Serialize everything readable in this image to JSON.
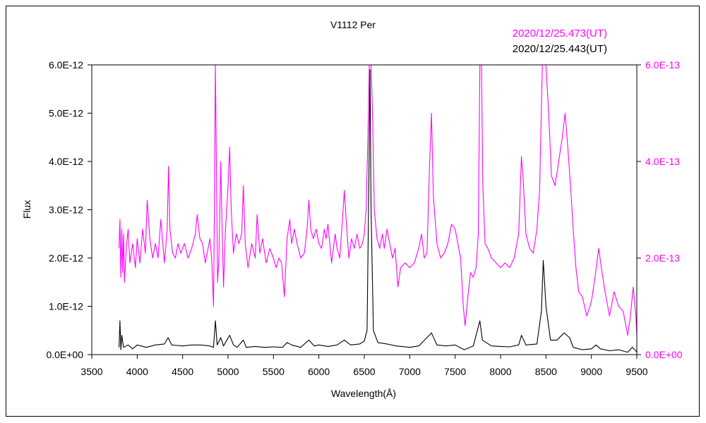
{
  "chart_data": {
    "type": "line",
    "title": "V1112 Per",
    "xlabel": "Wavelength(Å)",
    "ylabel": "Flux",
    "xlim": [
      3500,
      9500
    ],
    "ylim_left": [
      0,
      6e-12
    ],
    "ylim_right": [
      0,
      6e-13
    ],
    "x_ticks": [
      "3500",
      "4000",
      "4500",
      "5000",
      "5500",
      "6000",
      "6500",
      "7000",
      "7500",
      "8000",
      "8500",
      "9000",
      "9500"
    ],
    "y_ticks_left": [
      "0.0E+00",
      "1.0E-12",
      "2.0E-12",
      "3.0E-12",
      "4.0E-12",
      "5.0E-12",
      "6.0E-12"
    ],
    "y_ticks_right": [
      "0.0E+00",
      "2.0E-13",
      "4.0E-13",
      "6.0E-13"
    ],
    "grid": false,
    "legend_position": "top-right",
    "colors": {
      "magenta": "#ff00ff",
      "black": "#000000",
      "frame": "#000000"
    },
    "series": [
      {
        "name": "2020/12/25.473(UT)",
        "axis": "right",
        "color": "#ff00ff",
        "points": [
          [
            3800,
            2.2e-13
          ],
          [
            3810,
            2.8e-13
          ],
          [
            3820,
            1.6e-13
          ],
          [
            3830,
            2.6e-13
          ],
          [
            3840,
            1.7e-13
          ],
          [
            3850,
            2.5e-13
          ],
          [
            3860,
            1.5e-13
          ],
          [
            3880,
            2.2e-13
          ],
          [
            3900,
            2.6e-13
          ],
          [
            3920,
            1.9e-13
          ],
          [
            3950,
            2.3e-13
          ],
          [
            3980,
            1.8e-13
          ],
          [
            4000,
            2.4e-13
          ],
          [
            4030,
            1.9e-13
          ],
          [
            4060,
            2.6e-13
          ],
          [
            4090,
            2.1e-13
          ],
          [
            4110,
            3.2e-13
          ],
          [
            4140,
            2.4e-13
          ],
          [
            4170,
            2e-13
          ],
          [
            4200,
            2.3e-13
          ],
          [
            4230,
            2e-13
          ],
          [
            4260,
            2.8e-13
          ],
          [
            4300,
            1.9e-13
          ],
          [
            4330,
            2.6e-13
          ],
          [
            4345,
            3.9e-13
          ],
          [
            4360,
            2.6e-13
          ],
          [
            4390,
            2.1e-13
          ],
          [
            4420,
            2e-13
          ],
          [
            4450,
            2.3e-13
          ],
          [
            4480,
            2.1e-13
          ],
          [
            4520,
            2.3e-13
          ],
          [
            4560,
            2e-13
          ],
          [
            4600,
            2.2e-13
          ],
          [
            4640,
            2.5e-13
          ],
          [
            4660,
            2.9e-13
          ],
          [
            4690,
            2.4e-13
          ],
          [
            4720,
            2.3e-13
          ],
          [
            4750,
            1.9e-13
          ],
          [
            4780,
            2.2e-13
          ],
          [
            4800,
            2.4e-13
          ],
          [
            4820,
            2e-13
          ],
          [
            4840,
            1e-13
          ],
          [
            4850,
            3e-13
          ],
          [
            4861,
            6e-13
          ],
          [
            4872,
            4e-13
          ],
          [
            4885,
            1.5e-13
          ],
          [
            4900,
            2e-13
          ],
          [
            4920,
            4e-13
          ],
          [
            4935,
            2.6e-13
          ],
          [
            4950,
            1.4e-13
          ],
          [
            4970,
            2.5e-13
          ],
          [
            5000,
            3.5e-13
          ],
          [
            5018,
            4.3e-13
          ],
          [
            5035,
            3e-13
          ],
          [
            5060,
            2.1e-13
          ],
          [
            5090,
            2.5e-13
          ],
          [
            5120,
            2.3e-13
          ],
          [
            5150,
            2.5e-13
          ],
          [
            5169,
            3.5e-13
          ],
          [
            5190,
            2.3e-13
          ],
          [
            5220,
            1.8e-13
          ],
          [
            5260,
            2.3e-13
          ],
          [
            5300,
            2e-13
          ],
          [
            5320,
            2.9e-13
          ],
          [
            5350,
            2.1e-13
          ],
          [
            5380,
            2.4e-13
          ],
          [
            5420,
            1.9e-13
          ],
          [
            5460,
            2.2e-13
          ],
          [
            5500,
            2e-13
          ],
          [
            5530,
            1.8e-13
          ],
          [
            5560,
            2e-13
          ],
          [
            5590,
            1.9e-13
          ],
          [
            5620,
            1.2e-13
          ],
          [
            5650,
            2.4e-13
          ],
          [
            5680,
            2.8e-13
          ],
          [
            5700,
            2.3e-13
          ],
          [
            5730,
            2.6e-13
          ],
          [
            5760,
            2.3e-13
          ],
          [
            5800,
            2e-13
          ],
          [
            5840,
            2.1e-13
          ],
          [
            5870,
            2.6e-13
          ],
          [
            5890,
            3.2e-13
          ],
          [
            5910,
            2.6e-13
          ],
          [
            5940,
            2.4e-13
          ],
          [
            5970,
            2.6e-13
          ],
          [
            6000,
            2.3e-13
          ],
          [
            6030,
            2.2e-13
          ],
          [
            6060,
            2.6e-13
          ],
          [
            6080,
            2.4e-13
          ],
          [
            6100,
            2.7e-13
          ],
          [
            6140,
            1.9e-13
          ],
          [
            6180,
            2.5e-13
          ],
          [
            6200,
            2.2e-13
          ],
          [
            6230,
            2e-13
          ],
          [
            6260,
            2.8e-13
          ],
          [
            6280,
            3.4e-13
          ],
          [
            6300,
            2.8e-13
          ],
          [
            6330,
            2e-13
          ],
          [
            6360,
            2.4e-13
          ],
          [
            6390,
            2.2e-13
          ],
          [
            6420,
            2.5e-13
          ],
          [
            6450,
            2.2e-13
          ],
          [
            6480,
            2.3e-13
          ],
          [
            6500,
            2.5e-13
          ],
          [
            6520,
            3e-13
          ],
          [
            6540,
            4.5e-13
          ],
          [
            6555,
            6e-13
          ],
          [
            6575,
            6e-13
          ],
          [
            6590,
            5e-13
          ],
          [
            6610,
            3e-13
          ],
          [
            6640,
            2.4e-13
          ],
          [
            6670,
            2.2e-13
          ],
          [
            6700,
            2.5e-13
          ],
          [
            6720,
            2.2e-13
          ],
          [
            6750,
            2.6e-13
          ],
          [
            6780,
            2.3e-13
          ],
          [
            6810,
            2e-13
          ],
          [
            6840,
            2.2e-13
          ],
          [
            6870,
            1.4e-13
          ],
          [
            6900,
            1.8e-13
          ],
          [
            6950,
            1.9e-13
          ],
          [
            7000,
            1.8e-13
          ],
          [
            7050,
            1.9e-13
          ],
          [
            7100,
            2.2e-13
          ],
          [
            7130,
            2.5e-13
          ],
          [
            7160,
            2e-13
          ],
          [
            7190,
            2.1e-13
          ],
          [
            7220,
            4e-13
          ],
          [
            7240,
            5e-13
          ],
          [
            7260,
            3.3e-13
          ],
          [
            7300,
            2.3e-13
          ],
          [
            7340,
            2e-13
          ],
          [
            7380,
            2.1e-13
          ],
          [
            7420,
            2.3e-13
          ],
          [
            7460,
            2.7e-13
          ],
          [
            7500,
            2.6e-13
          ],
          [
            7530,
            2.3e-13
          ],
          [
            7560,
            2e-13
          ],
          [
            7590,
            1e-13
          ],
          [
            7610,
            6e-14
          ],
          [
            7640,
            1.2e-13
          ],
          [
            7670,
            1.7e-13
          ],
          [
            7700,
            1.6e-13
          ],
          [
            7730,
            1.8e-13
          ],
          [
            7755,
            2.5e-13
          ],
          [
            7772,
            6e-13
          ],
          [
            7790,
            6e-13
          ],
          [
            7805,
            3.5e-13
          ],
          [
            7830,
            2.3e-13
          ],
          [
            7860,
            2.2e-13
          ],
          [
            7900,
            2e-13
          ],
          [
            7950,
            1.9e-13
          ],
          [
            8000,
            1.8e-13
          ],
          [
            8050,
            1.9e-13
          ],
          [
            8100,
            1.8e-13
          ],
          [
            8150,
            2e-13
          ],
          [
            8200,
            2.5e-13
          ],
          [
            8230,
            4.1e-13
          ],
          [
            8250,
            3.6e-13
          ],
          [
            8280,
            2.5e-13
          ],
          [
            8320,
            2.2e-13
          ],
          [
            8360,
            2.1e-13
          ],
          [
            8400,
            2.6e-13
          ],
          [
            8430,
            3.4e-13
          ],
          [
            8460,
            6e-13
          ],
          [
            8500,
            6e-13
          ],
          [
            8530,
            5e-13
          ],
          [
            8560,
            3.7e-13
          ],
          [
            8600,
            3.5e-13
          ],
          [
            8640,
            4e-13
          ],
          [
            8680,
            4.5e-13
          ],
          [
            8710,
            5e-13
          ],
          [
            8740,
            4.3e-13
          ],
          [
            8770,
            3.5e-13
          ],
          [
            8800,
            2.6e-13
          ],
          [
            8830,
            1.8e-13
          ],
          [
            8860,
            1.3e-13
          ],
          [
            8900,
            1.2e-13
          ],
          [
            8950,
            8e-14
          ],
          [
            9000,
            1.1e-13
          ],
          [
            9040,
            1.6e-13
          ],
          [
            9080,
            2.2e-13
          ],
          [
            9110,
            1.8e-13
          ],
          [
            9150,
            1.3e-13
          ],
          [
            9200,
            8e-14
          ],
          [
            9250,
            1.3e-13
          ],
          [
            9300,
            1e-13
          ],
          [
            9350,
            9e-14
          ],
          [
            9400,
            4e-14
          ],
          [
            9430,
            8e-14
          ],
          [
            9460,
            1.4e-13
          ],
          [
            9490,
            8e-14
          ],
          [
            9500,
            4e-14
          ]
        ]
      },
      {
        "name": "2020/12/25.443(UT)",
        "axis": "left",
        "color": "#000000",
        "points": [
          [
            3800,
            1.5e-13
          ],
          [
            3810,
            7e-13
          ],
          [
            3820,
            1e-13
          ],
          [
            3830,
            4e-13
          ],
          [
            3850,
            1.5e-13
          ],
          [
            3900,
            2e-13
          ],
          [
            3950,
            1.2e-13
          ],
          [
            4000,
            2e-13
          ],
          [
            4100,
            1.5e-13
          ],
          [
            4200,
            2e-13
          ],
          [
            4300,
            2.2e-13
          ],
          [
            4340,
            3.5e-13
          ],
          [
            4380,
            2e-13
          ],
          [
            4500,
            1.8e-13
          ],
          [
            4600,
            2e-13
          ],
          [
            4700,
            2e-13
          ],
          [
            4800,
            1.8e-13
          ],
          [
            4840,
            1.5e-13
          ],
          [
            4861,
            7e-13
          ],
          [
            4880,
            2e-13
          ],
          [
            4920,
            3.5e-13
          ],
          [
            4950,
            1.8e-13
          ],
          [
            5018,
            4e-13
          ],
          [
            5060,
            2e-13
          ],
          [
            5100,
            1.5e-13
          ],
          [
            5169,
            3e-13
          ],
          [
            5200,
            1.5e-13
          ],
          [
            5300,
            1.7e-13
          ],
          [
            5400,
            1.5e-13
          ],
          [
            5500,
            1.6e-13
          ],
          [
            5600,
            1.5e-13
          ],
          [
            5650,
            2.5e-13
          ],
          [
            5700,
            2e-13
          ],
          [
            5800,
            1.5e-13
          ],
          [
            5890,
            3e-13
          ],
          [
            5950,
            1.8e-13
          ],
          [
            6000,
            2e-13
          ],
          [
            6100,
            1.7e-13
          ],
          [
            6200,
            2e-13
          ],
          [
            6280,
            3e-13
          ],
          [
            6350,
            2e-13
          ],
          [
            6450,
            2.2e-13
          ],
          [
            6500,
            2.8e-13
          ],
          [
            6530,
            5e-13
          ],
          [
            6550,
            3.5e-12
          ],
          [
            6563,
            5.9e-12
          ],
          [
            6575,
            3e-12
          ],
          [
            6600,
            5e-13
          ],
          [
            6650,
            2.5e-13
          ],
          [
            6750,
            2.2e-13
          ],
          [
            6850,
            1.8e-13
          ],
          [
            7000,
            1.5e-13
          ],
          [
            7100,
            1.8e-13
          ],
          [
            7240,
            4.5e-13
          ],
          [
            7300,
            2e-13
          ],
          [
            7400,
            1.8e-13
          ],
          [
            7500,
            2e-13
          ],
          [
            7600,
            1e-13
          ],
          [
            7700,
            1.8e-13
          ],
          [
            7772,
            7e-13
          ],
          [
            7800,
            3e-13
          ],
          [
            7900,
            1.8e-13
          ],
          [
            8000,
            1.7e-13
          ],
          [
            8100,
            1.6e-13
          ],
          [
            8200,
            2e-13
          ],
          [
            8230,
            4e-13
          ],
          [
            8280,
            2e-13
          ],
          [
            8400,
            2.2e-13
          ],
          [
            8450,
            9e-13
          ],
          [
            8470,
            1.95e-12
          ],
          [
            8500,
            1e-12
          ],
          [
            8550,
            3e-13
          ],
          [
            8620,
            3e-13
          ],
          [
            8700,
            4.5e-13
          ],
          [
            8760,
            3.5e-13
          ],
          [
            8800,
            1.5e-13
          ],
          [
            8900,
            1e-13
          ],
          [
            9000,
            1.2e-13
          ],
          [
            9050,
            2e-13
          ],
          [
            9100,
            1.2e-13
          ],
          [
            9200,
            8e-14
          ],
          [
            9300,
            1e-13
          ],
          [
            9400,
            5e-14
          ],
          [
            9450,
            1.5e-13
          ],
          [
            9480,
            1e-13
          ],
          [
            9500,
            5e-14
          ]
        ]
      }
    ]
  }
}
